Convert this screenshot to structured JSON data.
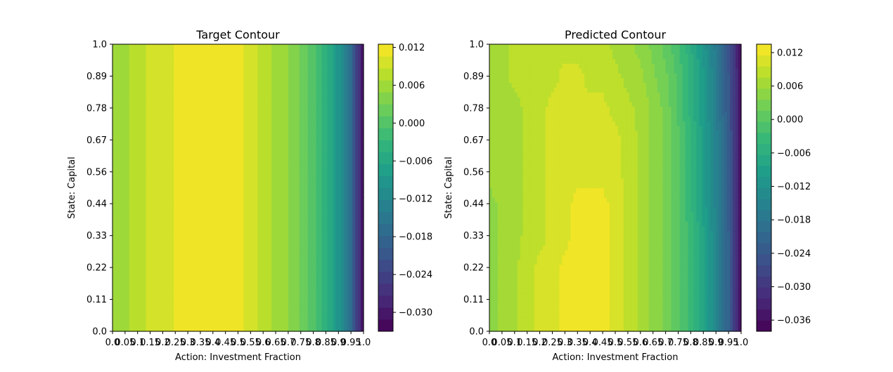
{
  "chart_data": [
    {
      "type": "heatmap",
      "title": "Target Contour",
      "xlabel": "Action: Investment Fraction",
      "ylabel": "State: Capital",
      "xlim": [
        0.0,
        1.0
      ],
      "ylim": [
        0.0,
        1.0
      ],
      "x_tick_labels": [
        "0.0",
        "0.05",
        "0.1",
        "0.15",
        "0.2",
        "0.25",
        "0.3",
        "0.35",
        "0.4",
        "0.45",
        "0.5",
        "0.55",
        "0.6",
        "0.65",
        "0.7",
        "0.75",
        "0.8",
        "0.85",
        "0.9",
        "0.95",
        "1.0"
      ],
      "y_tick_labels": [
        "0.0",
        "0.11",
        "0.22",
        "0.33",
        "0.44",
        "0.56",
        "0.67",
        "0.78",
        "0.89",
        "1.0"
      ],
      "colormap": "viridis",
      "colorbar": {
        "vmin": -0.033,
        "vmax": 0.0125,
        "levels": 24,
        "tick_values": [
          -0.03,
          -0.024,
          -0.018,
          -0.012,
          -0.006,
          0.0,
          0.006,
          0.012
        ],
        "tick_labels": [
          "−0.030",
          "−0.024",
          "−0.018",
          "−0.012",
          "−0.006",
          "0.000",
          "0.006",
          "0.012"
        ]
      },
      "x": [
        0.0,
        0.05,
        0.1,
        0.15,
        0.2,
        0.25,
        0.3,
        0.35,
        0.4,
        0.45,
        0.5,
        0.55,
        0.6,
        0.65,
        0.7,
        0.75,
        0.8,
        0.85,
        0.9,
        0.95,
        1.0
      ],
      "profile_by_x": [
        0.005,
        0.006,
        0.008,
        0.009,
        0.009,
        0.011,
        0.0115,
        0.0115,
        0.0115,
        0.0115,
        0.0115,
        0.0095,
        0.008,
        0.006,
        0.005,
        0.003,
        0.0,
        -0.004,
        -0.009,
        -0.017,
        -0.032
      ]
    },
    {
      "type": "heatmap",
      "title": "Predicted Contour",
      "xlabel": "Action: Investment Fraction",
      "ylabel": "State: Capital",
      "xlim": [
        0.0,
        1.0
      ],
      "ylim": [
        0.0,
        1.0
      ],
      "x_tick_labels": [
        "0.0",
        "0.05",
        "0.1",
        "0.15",
        "0.2",
        "0.25",
        "0.3",
        "0.35",
        "0.4",
        "0.45",
        "0.5",
        "0.55",
        "0.6",
        "0.65",
        "0.7",
        "0.75",
        "0.8",
        "0.85",
        "0.9",
        "0.95",
        "1.0"
      ],
      "y_tick_labels": [
        "0.0",
        "0.11",
        "0.22",
        "0.33",
        "0.44",
        "0.56",
        "0.67",
        "0.78",
        "0.89",
        "1.0"
      ],
      "colormap": "viridis",
      "colorbar": {
        "vmin": -0.038,
        "vmax": 0.0135,
        "levels": 26,
        "tick_values": [
          -0.036,
          -0.03,
          -0.024,
          -0.018,
          -0.012,
          -0.006,
          0.0,
          0.006,
          0.012
        ],
        "tick_labels": [
          "−0.036",
          "−0.030",
          "−0.024",
          "−0.018",
          "−0.012",
          "−0.006",
          "0.000",
          "0.006",
          "0.012"
        ]
      },
      "x": [
        0.0,
        0.05,
        0.1,
        0.15,
        0.2,
        0.25,
        0.3,
        0.35,
        0.4,
        0.45,
        0.5,
        0.55,
        0.6,
        0.65,
        0.7,
        0.75,
        0.8,
        0.85,
        0.9,
        0.95,
        1.0
      ],
      "y": [
        0.0,
        0.11,
        0.22,
        0.33,
        0.44,
        0.56,
        0.67,
        0.78,
        0.89,
        1.0
      ],
      "values": [
        [
          0.005,
          0.006,
          0.007,
          0.009,
          0.01,
          0.011,
          0.012,
          0.013,
          0.013,
          0.012,
          0.011,
          0.009,
          0.007,
          0.005,
          0.003,
          0.0,
          -0.003,
          -0.008,
          -0.014,
          -0.022,
          -0.036
        ],
        [
          0.005,
          0.006,
          0.007,
          0.009,
          0.01,
          0.011,
          0.012,
          0.013,
          0.013,
          0.012,
          0.011,
          0.009,
          0.007,
          0.005,
          0.003,
          0.0,
          -0.003,
          -0.008,
          -0.014,
          -0.022,
          -0.036
        ],
        [
          0.005,
          0.006,
          0.007,
          0.009,
          0.01,
          0.011,
          0.012,
          0.013,
          0.013,
          0.012,
          0.011,
          0.009,
          0.007,
          0.005,
          0.003,
          0.0,
          -0.003,
          -0.008,
          -0.014,
          -0.022,
          -0.036
        ],
        [
          0.005,
          0.006,
          0.007,
          0.008,
          0.009,
          0.01,
          0.011,
          0.012,
          0.013,
          0.012,
          0.011,
          0.009,
          0.007,
          0.005,
          0.003,
          0.0,
          -0.003,
          -0.008,
          -0.014,
          -0.022,
          -0.036
        ],
        [
          0.005,
          0.006,
          0.007,
          0.008,
          0.009,
          0.01,
          0.011,
          0.012,
          0.012,
          0.012,
          0.011,
          0.009,
          0.007,
          0.005,
          0.003,
          0.0,
          -0.004,
          -0.009,
          -0.015,
          -0.023,
          -0.036
        ],
        [
          0.006,
          0.007,
          0.007,
          0.008,
          0.009,
          0.01,
          0.011,
          0.011,
          0.011,
          0.011,
          0.01,
          0.009,
          0.007,
          0.005,
          0.003,
          0.0,
          -0.004,
          -0.009,
          -0.015,
          -0.023,
          -0.036
        ],
        [
          0.006,
          0.007,
          0.007,
          0.008,
          0.009,
          0.01,
          0.01,
          0.01,
          0.01,
          0.01,
          0.01,
          0.009,
          0.007,
          0.005,
          0.003,
          0.0,
          -0.004,
          -0.009,
          -0.015,
          -0.023,
          -0.036
        ],
        [
          0.006,
          0.007,
          0.007,
          0.008,
          0.009,
          0.01,
          0.01,
          0.01,
          0.01,
          0.01,
          0.009,
          0.008,
          0.007,
          0.005,
          0.003,
          -0.001,
          -0.005,
          -0.01,
          -0.016,
          -0.024,
          -0.036
        ],
        [
          0.007,
          0.007,
          0.008,
          0.008,
          0.009,
          0.009,
          0.01,
          0.01,
          0.009,
          0.009,
          0.008,
          0.007,
          0.006,
          0.004,
          0.002,
          -0.001,
          -0.005,
          -0.01,
          -0.016,
          -0.024,
          -0.036
        ],
        [
          0.007,
          0.007,
          0.008,
          0.008,
          0.009,
          0.009,
          0.009,
          0.009,
          0.009,
          0.008,
          0.007,
          0.006,
          0.005,
          0.003,
          0.001,
          -0.002,
          -0.006,
          -0.011,
          -0.017,
          -0.025,
          -0.036
        ]
      ]
    }
  ]
}
